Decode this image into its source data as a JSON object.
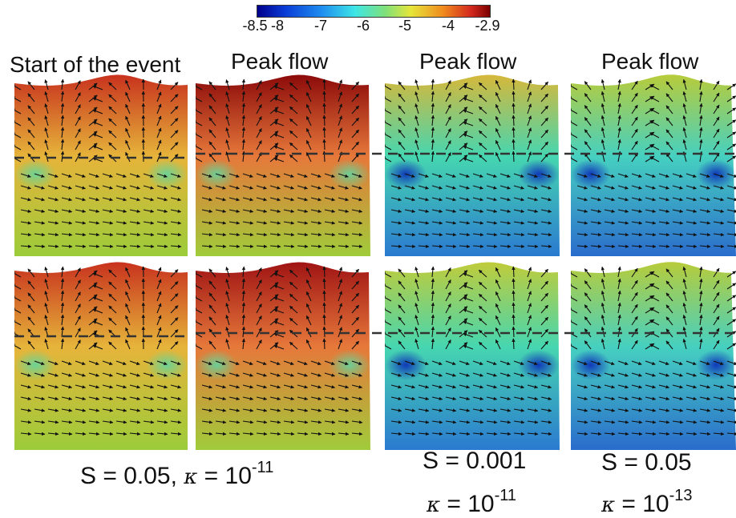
{
  "colorbar": {
    "ticks": [
      "-8.5",
      "-8",
      "-7",
      "-6",
      "-5",
      "-4",
      "-2.9"
    ],
    "colors": [
      "#00008c",
      "#0a3cd6",
      "#1f8ff0",
      "#3ee6e6",
      "#7fe07a",
      "#e6e63a",
      "#f08a1e",
      "#d2281e",
      "#7a0000"
    ]
  },
  "titles": {
    "col1": "Start of the event",
    "col2": "Peak flow",
    "col3": "Peak flow",
    "col4": "Peak flow"
  },
  "captions": {
    "left_main": "S = 0.05, ",
    "left_kappa": "κ",
    "left_exp_text": " = 10",
    "left_exp": "-11",
    "mid_s": "S = 0.001",
    "mid_kappa": "κ",
    "mid_exp_text": " = 10",
    "mid_exp": "-11",
    "right_s": "S = 0.05",
    "right_kappa": "κ",
    "right_exp_text": " = 10",
    "right_exp": "-13"
  },
  "panels": [
    {
      "id": "p-r1-c1",
      "top_color": "#c8321e",
      "mid_color": "#e6b43a",
      "bottom_color": "#9ccc3a",
      "spot_color": "#5fd6a0"
    },
    {
      "id": "p-r1-c2",
      "top_color": "#8c0a0a",
      "mid_color": "#e6783a",
      "bottom_color": "#a0cc3a",
      "spot_color": "#5fd6a0"
    },
    {
      "id": "p-r1-c3",
      "top_color": "#d6b83a",
      "mid_color": "#46d6b0",
      "bottom_color": "#2a7ad0",
      "spot_color": "#0a2ab8"
    },
    {
      "id": "p-r1-c4",
      "top_color": "#b8cc3a",
      "mid_color": "#46d0c0",
      "bottom_color": "#2a6ccc",
      "spot_color": "#0a2ab8"
    },
    {
      "id": "p-r2-c1",
      "top_color": "#c8321e",
      "mid_color": "#e6b43a",
      "bottom_color": "#9ccc3a",
      "spot_color": "#5fd6a0"
    },
    {
      "id": "p-r2-c2",
      "top_color": "#a01414",
      "mid_color": "#e6783a",
      "bottom_color": "#a0cc3a",
      "spot_color": "#5fd6a0"
    },
    {
      "id": "p-r2-c3",
      "top_color": "#c0cc3a",
      "mid_color": "#46d6b0",
      "bottom_color": "#2a7ad0",
      "spot_color": "#0a2ab8"
    },
    {
      "id": "p-r2-c4",
      "top_color": "#b8cc3a",
      "mid_color": "#46d0c0",
      "bottom_color": "#2a6ccc",
      "spot_color": "#0a2ab8"
    }
  ]
}
